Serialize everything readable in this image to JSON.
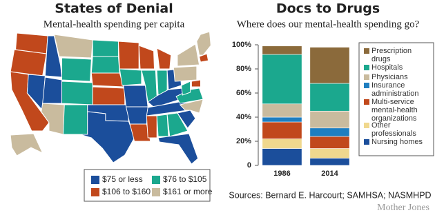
{
  "map": {
    "title": "States of Denial",
    "subtitle": "Mental-health spending per capita",
    "legend": [
      {
        "label": "$75 or less",
        "color": "#1b4e9b"
      },
      {
        "label": "$76 to $105",
        "color": "#1ba88e"
      },
      {
        "label": "$106 to $160",
        "color": "#c1481c"
      },
      {
        "label": "$161 or more",
        "color": "#c9bb9e"
      }
    ]
  },
  "chart_data": {
    "type": "bar",
    "stacked": true,
    "title": "Docs to Drugs",
    "subtitle": "Where does our mental-health spending go?",
    "categories": [
      "1986",
      "2014"
    ],
    "series": [
      {
        "name": "Nursing homes",
        "color": "#1b4e9b",
        "values": [
          14,
          6
        ]
      },
      {
        "name": "Other professionals",
        "color": "#f0d88e",
        "values": [
          8,
          8
        ]
      },
      {
        "name": "Multi-service mental-health organizations",
        "color": "#c1481c",
        "values": [
          14,
          10
        ]
      },
      {
        "name": "Insurance administration",
        "color": "#1e7ec0",
        "values": [
          4,
          7
        ]
      },
      {
        "name": "Physicians",
        "color": "#c9bb9e",
        "values": [
          11,
          14
        ]
      },
      {
        "name": "Hospitals",
        "color": "#1ba88e",
        "values": [
          41,
          23
        ]
      },
      {
        "name": "Prescription drugs",
        "color": "#8b6a3b",
        "values": [
          7,
          30
        ]
      }
    ],
    "ylim": [
      0,
      100
    ],
    "yticks": [
      0,
      {
        "value": 20,
        "label": "20%"
      },
      {
        "value": 40,
        "label": "40%"
      },
      {
        "value": 60,
        "label": "60%"
      },
      {
        "value": 80,
        "label": "80%"
      },
      {
        "value": 100,
        "label": "100%"
      }
    ]
  },
  "footer": {
    "sources": "Sources: Bernard E. Harcourt; SAMHSA; NASMHPD",
    "credit": "Mother Jones"
  }
}
